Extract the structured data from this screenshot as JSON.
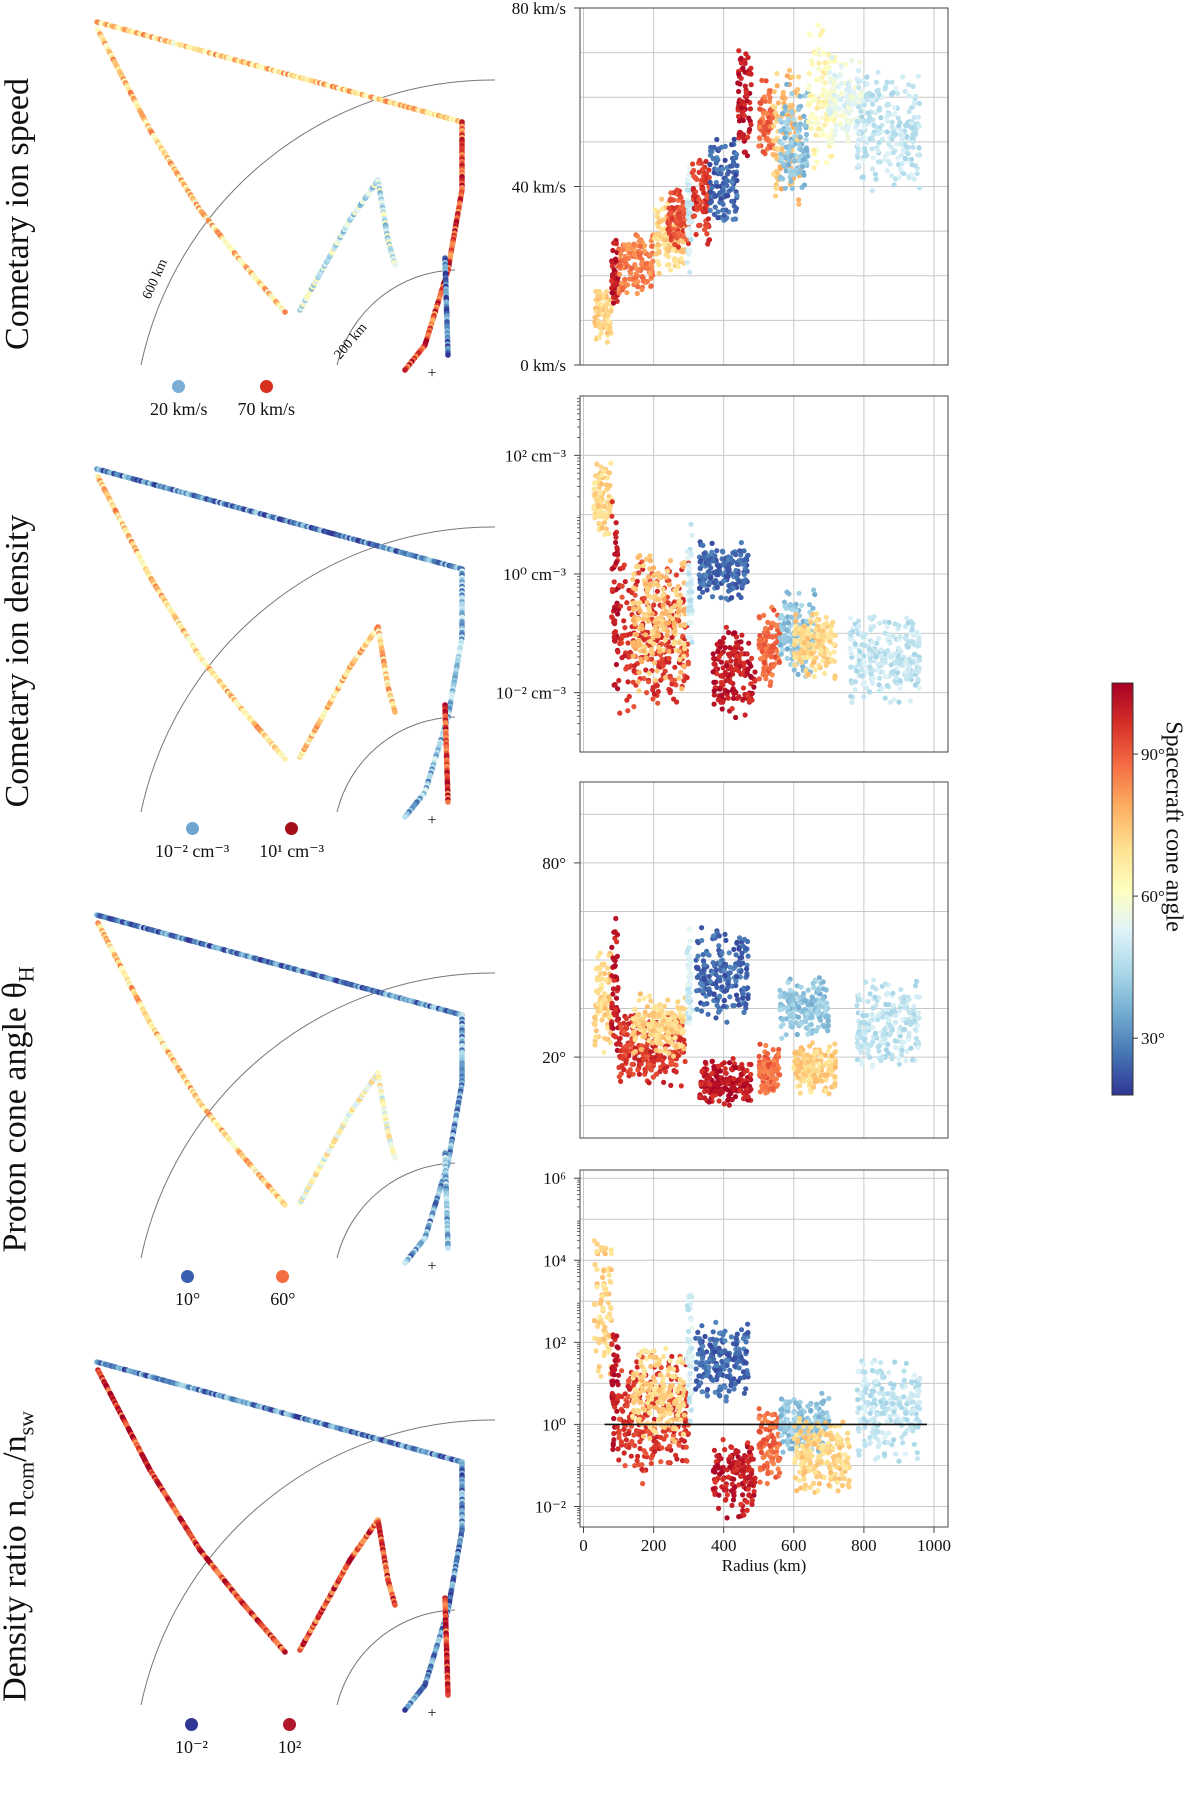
{
  "row_labels": [
    {
      "text": "Cometary ion speed",
      "sub": ""
    },
    {
      "text": "Cometary ion density",
      "sub": ""
    },
    {
      "text": "Proton cone angle θ",
      "sub": "H"
    },
    {
      "text": "Density ratio  n",
      "sub": "com",
      "text2": "/n",
      "sub2": "sw"
    }
  ],
  "trajectory_panels": [
    {
      "legend": [
        {
          "label": "20 km/s",
          "color": "#7aaed6"
        },
        {
          "label": "70 km/s",
          "color": "#d7301f"
        }
      ],
      "arc_labels": [
        "600 km",
        "200 km"
      ],
      "origin_marker": "+"
    },
    {
      "legend": [
        {
          "label": "10⁻² cm⁻³",
          "color": "#6ea5d1"
        },
        {
          "label": "10¹ cm⁻³",
          "color": "#a50f15"
        }
      ],
      "arc_labels": [],
      "origin_marker": "+"
    },
    {
      "legend": [
        {
          "label": "10°",
          "color": "#3a5fae"
        },
        {
          "label": "60°",
          "color": "#f46d43"
        }
      ],
      "arc_labels": [],
      "origin_marker": "+"
    },
    {
      "legend": [
        {
          "label": "10⁻²",
          "color": "#313695"
        },
        {
          "label": "10²",
          "color": "#b2182b"
        }
      ],
      "arc_labels": [],
      "origin_marker": "+"
    }
  ],
  "colorbar": {
    "label": "Spacecraft cone angle",
    "ticks": [
      "30°",
      "60°",
      "90°"
    ],
    "tick_values": [
      30,
      60,
      90
    ],
    "range": [
      18,
      105
    ],
    "colors": [
      "#313695",
      "#4575b4",
      "#74add1",
      "#abd9e9",
      "#e0f3f8",
      "#ffffbf",
      "#fee090",
      "#fdae61",
      "#f46d43",
      "#d73027",
      "#a50026"
    ]
  },
  "chart_data": [
    {
      "type": "scatter",
      "title": "Cometary ion speed",
      "xlabel": "",
      "ylabel": "",
      "xlim": [
        -10,
        1040
      ],
      "ylim": [
        0,
        80
      ],
      "scale": "linear",
      "yticks": [
        0,
        40,
        80
      ],
      "yticklabels": [
        "0 km/s",
        "40 km/s",
        "80 km/s"
      ],
      "clusters": [
        {
          "x": [
            30,
            80
          ],
          "y": [
            4,
            18
          ],
          "c": 72
        },
        {
          "x": [
            80,
            100
          ],
          "y": [
            12,
            30
          ],
          "c": 100
        },
        {
          "x": [
            100,
            200
          ],
          "y": [
            15,
            30
          ],
          "c": 85
        },
        {
          "x": [
            200,
            290
          ],
          "y": [
            20,
            38
          ],
          "c": 72
        },
        {
          "x": [
            240,
            300
          ],
          "y": [
            26,
            40
          ],
          "c": 92
        },
        {
          "x": [
            295,
            310
          ],
          "y": [
            20,
            46
          ],
          "c": 50
        },
        {
          "x": [
            310,
            360
          ],
          "y": [
            25,
            48
          ],
          "c": 95
        },
        {
          "x": [
            360,
            440
          ],
          "y": [
            28,
            52
          ],
          "c": 25
        },
        {
          "x": [
            440,
            480
          ],
          "y": [
            45,
            72
          ],
          "c": 100
        },
        {
          "x": [
            500,
            540
          ],
          "y": [
            45,
            65
          ],
          "c": 88
        },
        {
          "x": [
            540,
            620
          ],
          "y": [
            35,
            68
          ],
          "c": 75
        },
        {
          "x": [
            560,
            640
          ],
          "y": [
            35,
            65
          ],
          "c": 40
        },
        {
          "x": [
            640,
            720
          ],
          "y": [
            40,
            78
          ],
          "c": 63
        },
        {
          "x": [
            700,
            800
          ],
          "y": [
            48,
            70
          ],
          "c": 55
        },
        {
          "x": [
            780,
            960
          ],
          "y": [
            38,
            66
          ],
          "c": 48
        }
      ]
    },
    {
      "type": "scatter",
      "title": "Cometary ion density",
      "xlabel": "",
      "ylabel": "",
      "xlim": [
        -10,
        1040
      ],
      "ylim": [
        -3,
        3
      ],
      "scale": "log10",
      "yticks": [
        -2,
        0,
        2
      ],
      "yticklabels": [
        "10⁻² cm⁻³",
        "10⁰ cm⁻³",
        "10² cm⁻³"
      ],
      "clusters": [
        {
          "x": [
            30,
            80
          ],
          "y": [
            0.6,
            2.0
          ],
          "c": 72
        },
        {
          "x": [
            80,
            100
          ],
          "y": [
            -2.0,
            1.5
          ],
          "c": 100
        },
        {
          "x": [
            100,
            300
          ],
          "y": [
            -2.5,
            0.3
          ],
          "c": 95
        },
        {
          "x": [
            140,
            290
          ],
          "y": [
            -2.0,
            0.5
          ],
          "c": 75
        },
        {
          "x": [
            295,
            310
          ],
          "y": [
            -1.5,
            1.0
          ],
          "c": 50
        },
        {
          "x": [
            330,
            470
          ],
          "y": [
            -0.5,
            0.6
          ],
          "c": 25
        },
        {
          "x": [
            370,
            490
          ],
          "y": [
            -2.5,
            -0.8
          ],
          "c": 100
        },
        {
          "x": [
            500,
            560
          ],
          "y": [
            -2.0,
            -0.5
          ],
          "c": 88
        },
        {
          "x": [
            560,
            660
          ],
          "y": [
            -1.8,
            -0.2
          ],
          "c": 40
        },
        {
          "x": [
            600,
            720
          ],
          "y": [
            -1.8,
            -0.6
          ],
          "c": 72
        },
        {
          "x": [
            760,
            960
          ],
          "y": [
            -2.2,
            -0.6
          ],
          "c": 48
        }
      ]
    },
    {
      "type": "scatter",
      "title": "Proton cone angle θH",
      "xlabel": "",
      "ylabel": "",
      "xlim": [
        -10,
        1040
      ],
      "ylim": [
        -5,
        105
      ],
      "scale": "linear",
      "yticks": [
        20,
        80
      ],
      "yticklabels": [
        "20°",
        "80°"
      ],
      "clusters": [
        {
          "x": [
            30,
            80
          ],
          "y": [
            20,
            55
          ],
          "c": 72
        },
        {
          "x": [
            80,
            100
          ],
          "y": [
            15,
            65
          ],
          "c": 100
        },
        {
          "x": [
            100,
            290
          ],
          "y": [
            10,
            35
          ],
          "c": 95
        },
        {
          "x": [
            140,
            290
          ],
          "y": [
            20,
            40
          ],
          "c": 72
        },
        {
          "x": [
            295,
            310
          ],
          "y": [
            25,
            60
          ],
          "c": 50
        },
        {
          "x": [
            320,
            470
          ],
          "y": [
            30,
            62
          ],
          "c": 25
        },
        {
          "x": [
            330,
            480
          ],
          "y": [
            5,
            20
          ],
          "c": 100
        },
        {
          "x": [
            500,
            560
          ],
          "y": [
            8,
            25
          ],
          "c": 88
        },
        {
          "x": [
            560,
            700
          ],
          "y": [
            25,
            45
          ],
          "c": 40
        },
        {
          "x": [
            600,
            720
          ],
          "y": [
            8,
            25
          ],
          "c": 72
        },
        {
          "x": [
            780,
            960
          ],
          "y": [
            15,
            45
          ],
          "c": 48
        }
      ]
    },
    {
      "type": "scatter",
      "title": "Density ratio ncom/nsw",
      "xlabel": "Radius (km)",
      "ylabel": "",
      "xlim": [
        -10,
        1040
      ],
      "ylim": [
        -2.5,
        6.2
      ],
      "scale": "log10",
      "yticks": [
        -2,
        0,
        2,
        4,
        6
      ],
      "yticklabels": [
        "10⁻²",
        "10⁰",
        "10²",
        "10⁴",
        "10⁶"
      ],
      "xticks": [
        0,
        200,
        400,
        600,
        800,
        1000
      ],
      "xticklabels": [
        "0",
        "200",
        "400",
        "600",
        "800",
        "1000"
      ],
      "hline": 0,
      "clusters": [
        {
          "x": [
            30,
            80
          ],
          "y": [
            1.0,
            4.8
          ],
          "c": 72
        },
        {
          "x": [
            80,
            100
          ],
          "y": [
            -1.0,
            3.0
          ],
          "c": 100
        },
        {
          "x": [
            100,
            300
          ],
          "y": [
            -1.5,
            2.0
          ],
          "c": 95
        },
        {
          "x": [
            140,
            290
          ],
          "y": [
            -0.5,
            2.0
          ],
          "c": 72
        },
        {
          "x": [
            295,
            310
          ],
          "y": [
            0.0,
            3.8
          ],
          "c": 50
        },
        {
          "x": [
            320,
            470
          ],
          "y": [
            0.5,
            2.6
          ],
          "c": 25
        },
        {
          "x": [
            370,
            490
          ],
          "y": [
            -2.3,
            -0.3
          ],
          "c": 100
        },
        {
          "x": [
            500,
            560
          ],
          "y": [
            -1.5,
            0.5
          ],
          "c": 88
        },
        {
          "x": [
            560,
            700
          ],
          "y": [
            -0.8,
            0.8
          ],
          "c": 40
        },
        {
          "x": [
            600,
            760
          ],
          "y": [
            -1.8,
            0.3
          ],
          "c": 72
        },
        {
          "x": [
            780,
            960
          ],
          "y": [
            -1.0,
            1.8
          ],
          "c": 48
        }
      ]
    }
  ]
}
